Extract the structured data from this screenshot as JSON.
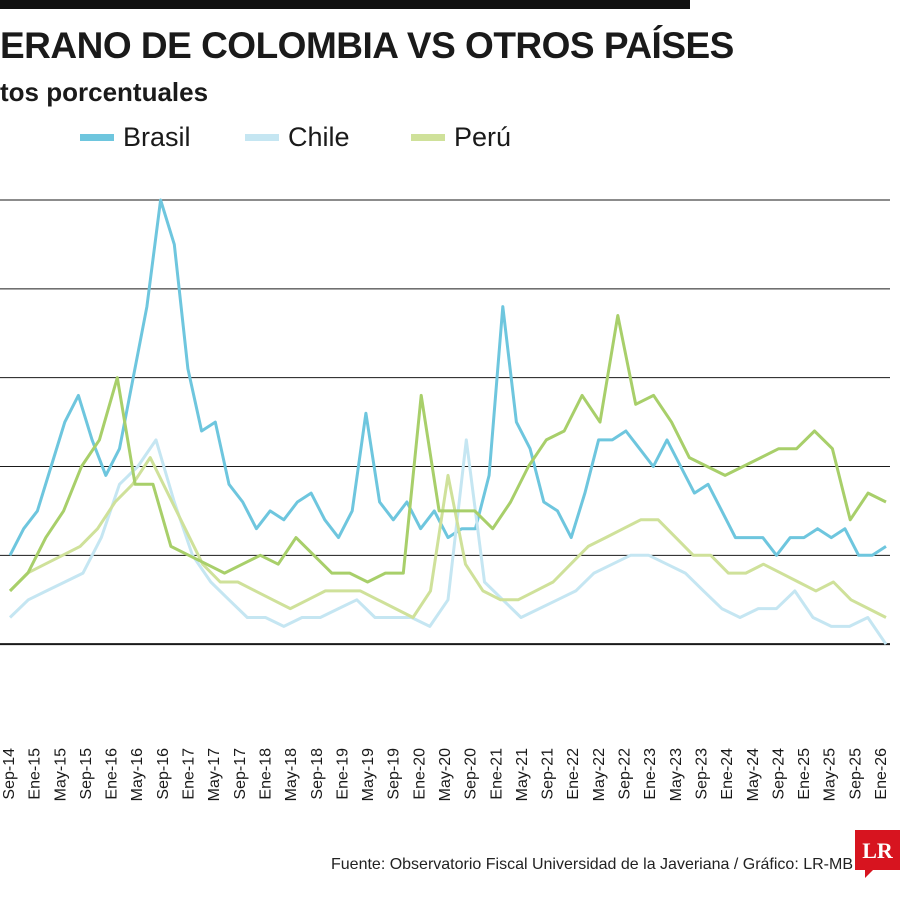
{
  "header": {
    "title": "ERANO DE COLOMBIA VS OTROS PAÍSES",
    "subtitle": "tos porcentuales"
  },
  "footer": {
    "source": "Fuente: Observatorio Fiscal Universidad de la Javeriana / Gráfico: LR-MB",
    "logo_text": "LR"
  },
  "colors": {
    "brasil": "#6ec6de",
    "chile": "#c5e6f2",
    "peru": "#cfe19a",
    "grid": "#1a1a1a",
    "logo": "#d7141f"
  },
  "chart_data": {
    "type": "line",
    "title": "",
    "xlabel": "",
    "ylabel": "",
    "y_range": [
      0,
      6
    ],
    "gridlines": [
      1,
      2,
      3,
      4,
      5,
      6
    ],
    "grid": true,
    "legend_position": "top",
    "x_start": "2014-09",
    "x_end": "2026-01",
    "x_ticks": [
      "Sep-14",
      "Ene-15",
      "May-15",
      "Sep-15",
      "Ene-16",
      "May-16",
      "Sep-16",
      "Ene-17",
      "May-17",
      "Sep-17",
      "Ene-18",
      "May-18",
      "Sep-18",
      "Ene-19",
      "May-19",
      "Sep-19",
      "Ene-20",
      "May-20",
      "Sep-20",
      "Ene-21",
      "May-21",
      "Sep-21",
      "Ene-22",
      "May-22",
      "Sep-22",
      "Ene-23",
      "May-23",
      "Sep-23",
      "Ene-24",
      "May-24",
      "Sep-24",
      "Ene-25",
      "May-25",
      "Sep-25",
      "Ene-26"
    ],
    "series": [
      {
        "name": "Brasil",
        "color": "#6ec6de",
        "values": [
          2.0,
          2.3,
          2.5,
          3.0,
          3.5,
          3.8,
          3.3,
          2.9,
          3.2,
          4.0,
          4.8,
          6.0,
          5.5,
          4.1,
          3.4,
          3.5,
          2.8,
          2.6,
          2.3,
          2.5,
          2.4,
          2.6,
          2.7,
          2.4,
          2.2,
          2.5,
          3.6,
          2.6,
          2.4,
          2.6,
          2.3,
          2.5,
          2.2,
          2.3,
          2.3,
          2.9,
          4.8,
          3.5,
          3.2,
          2.6,
          2.5,
          2.2,
          2.7,
          3.3,
          3.3,
          3.4,
          3.2,
          3.0,
          3.3,
          3.0,
          2.7,
          2.8,
          2.5,
          2.2,
          2.2,
          2.2,
          2.0,
          2.2,
          2.2,
          2.3,
          2.2,
          2.3,
          2.0,
          2.0,
          2.1
        ]
      },
      {
        "name": "Chile",
        "color": "#c5e6f2",
        "values": [
          1.3,
          1.5,
          1.6,
          1.7,
          1.8,
          2.2,
          2.8,
          3.0,
          3.3,
          2.6,
          2.0,
          1.7,
          1.5,
          1.3,
          1.3,
          1.2,
          1.3,
          1.3,
          1.4,
          1.5,
          1.3,
          1.3,
          1.3,
          1.2,
          1.5,
          3.3,
          1.7,
          1.5,
          1.3,
          1.4,
          1.5,
          1.6,
          1.8,
          1.9,
          2.0,
          2.0,
          1.9,
          1.8,
          1.6,
          1.4,
          1.3,
          1.4,
          1.4,
          1.6,
          1.3,
          1.2,
          1.2,
          1.3,
          1.0
        ]
      },
      {
        "name": "Perú",
        "color": "#cfe19a",
        "values": [
          1.6,
          1.8,
          1.9,
          2.0,
          2.1,
          2.3,
          2.6,
          2.8,
          3.1,
          2.7,
          2.3,
          1.9,
          1.7,
          1.7,
          1.6,
          1.5,
          1.4,
          1.5,
          1.6,
          1.6,
          1.6,
          1.5,
          1.4,
          1.3,
          1.6,
          2.9,
          1.9,
          1.6,
          1.5,
          1.5,
          1.6,
          1.7,
          1.9,
          2.1,
          2.2,
          2.3,
          2.4,
          2.4,
          2.2,
          2.0,
          2.0,
          1.8,
          1.8,
          1.9,
          1.8,
          1.7,
          1.6,
          1.7,
          1.5,
          1.4,
          1.3
        ]
      },
      {
        "name": "",
        "color": "#a8cf6a",
        "values": [
          1.6,
          1.8,
          2.2,
          2.5,
          3.0,
          3.3,
          4.0,
          2.8,
          2.8,
          2.1,
          2.0,
          1.9,
          1.8,
          1.9,
          2.0,
          1.9,
          2.2,
          2.0,
          1.8,
          1.8,
          1.7,
          1.8,
          1.8,
          3.8,
          2.5,
          2.5,
          2.5,
          2.3,
          2.6,
          3.0,
          3.3,
          3.4,
          3.8,
          3.5,
          4.7,
          3.7,
          3.8,
          3.5,
          3.1,
          3.0,
          2.9,
          3.0,
          3.1,
          3.2,
          3.2,
          3.4,
          3.2,
          2.4,
          2.7,
          2.6
        ]
      }
    ]
  }
}
